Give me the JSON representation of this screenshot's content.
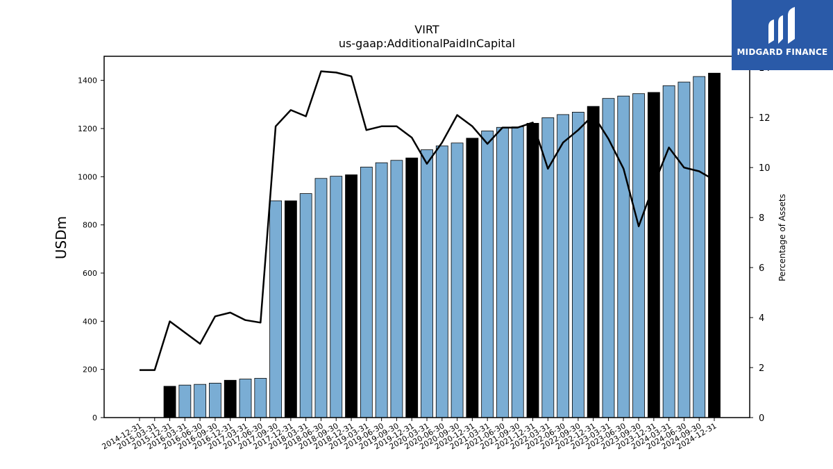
{
  "chart_data": {
    "type": "bar",
    "title": "VIRT",
    "subtitle": "us-gaap:AdditionalPaidInCapital",
    "ylabel": "USDm",
    "ylabel_right": "Percentage of Assets",
    "ylim": [
      0,
      1500
    ],
    "ylim_right": [
      0,
      14.45
    ],
    "yticks": [
      0,
      200,
      400,
      600,
      800,
      1000,
      1200,
      1400
    ],
    "yticks_right": [
      0,
      2,
      4,
      6,
      8,
      10,
      12,
      14
    ],
    "grid": false,
    "legend": "none",
    "categories": [
      "2014-12-31",
      "2015-03-31",
      "2015-12-31",
      "2016-03-31",
      "2016-06-30",
      "2016-09-30",
      "2016-12-31",
      "2017-03-31",
      "2017-06-30",
      "2017-09-30",
      "2017-12-31",
      "2018-03-31",
      "2018-06-30",
      "2018-09-30",
      "2018-12-31",
      "2019-03-31",
      "2019-06-30",
      "2019-09-30",
      "2019-12-31",
      "2020-03-31",
      "2020-06-30",
      "2020-09-30",
      "2020-12-31",
      "2021-03-31",
      "2021-06-30",
      "2021-09-30",
      "2021-12-31",
      "2022-03-31",
      "2022-06-30",
      "2022-09-30",
      "2022-12-31",
      "2023-03-31",
      "2023-06-30",
      "2023-09-30",
      "2023-12-31",
      "2024-03-31",
      "2024-06-30",
      "2024-09-30",
      "2024-12-31"
    ],
    "series": [
      {
        "type": "bar",
        "values": [
          null,
          null,
          130,
          135,
          138,
          143,
          155,
          160,
          163,
          900,
          900,
          930,
          993,
          1002,
          1008,
          1040,
          1058,
          1068,
          1078,
          1112,
          1128,
          1140,
          1160,
          1190,
          1205,
          1207,
          1222,
          1245,
          1258,
          1268,
          1292,
          1325,
          1335,
          1345,
          1350,
          1378,
          1393,
          1416,
          1430
        ],
        "year_end": [
          false,
          false,
          true,
          false,
          false,
          false,
          true,
          false,
          false,
          false,
          true,
          false,
          false,
          false,
          true,
          false,
          false,
          false,
          true,
          false,
          false,
          false,
          true,
          false,
          false,
          false,
          true,
          false,
          false,
          false,
          true,
          false,
          false,
          false,
          true,
          false,
          false,
          false,
          true
        ]
      },
      {
        "type": "line",
        "values": [
          1.9,
          1.9,
          3.85,
          3.4,
          2.95,
          4.05,
          4.2,
          3.9,
          3.8,
          11.65,
          12.3,
          12.05,
          13.85,
          13.8,
          13.65,
          11.5,
          11.65,
          11.65,
          11.2,
          10.15,
          11.0,
          12.1,
          11.65,
          10.95,
          11.6,
          11.6,
          11.8,
          9.95,
          11.0,
          11.5,
          12.1,
          11.15,
          9.95,
          7.65,
          9.3,
          10.8,
          10.0,
          9.85,
          9.5
        ]
      }
    ],
    "colors": {
      "bar": "#7aadd4",
      "bar_year_end": "#000000",
      "line": "#000000"
    }
  },
  "logo": {
    "text": "MIDGARD FINANCE",
    "background": "#2a5aa8"
  }
}
